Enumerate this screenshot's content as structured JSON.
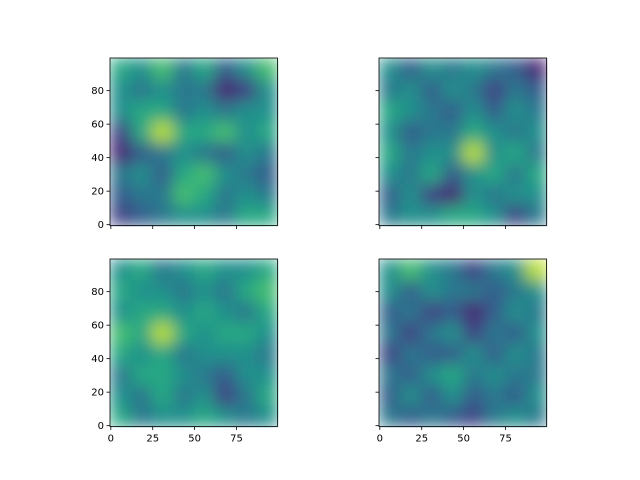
{
  "chart_data": [
    {
      "type": "heatmap",
      "colormap": "viridis",
      "xlim": [
        -0.5,
        99.5
      ],
      "ylim": [
        -0.5,
        99.5
      ],
      "xticks": [
        0,
        25,
        50,
        75
      ],
      "yticks": [
        0,
        20,
        40,
        60,
        80
      ],
      "show_xticklabels": false,
      "show_yticklabels": true,
      "z": [
        [
          0.2,
          0.3,
          0.4,
          0.5,
          0.5,
          0.4,
          0.6,
          0.6
        ],
        [
          0.3,
          0.4,
          0.4,
          0.7,
          0.6,
          0.4,
          0.5,
          0.4
        ],
        [
          0.4,
          0.5,
          0.3,
          0.6,
          0.7,
          0.5,
          0.4,
          0.3
        ],
        [
          0.1,
          0.3,
          0.4,
          0.5,
          0.4,
          0.3,
          0.5,
          0.4
        ],
        [
          0.2,
          0.6,
          0.9,
          0.6,
          0.6,
          0.7,
          0.5,
          0.6
        ],
        [
          0.5,
          0.6,
          0.6,
          0.4,
          0.5,
          0.4,
          0.5,
          0.5
        ],
        [
          0.5,
          0.4,
          0.5,
          0.4,
          0.4,
          0.1,
          0.2,
          0.5
        ],
        [
          0.6,
          0.5,
          0.7,
          0.4,
          0.6,
          0.3,
          0.5,
          0.7
        ]
      ]
    },
    {
      "type": "heatmap",
      "colormap": "viridis",
      "xlim": [
        -0.5,
        99.5
      ],
      "ylim": [
        -0.5,
        99.5
      ],
      "xticks": [
        0,
        25,
        50,
        75
      ],
      "yticks": [
        0,
        20,
        40,
        60,
        80
      ],
      "show_xticklabels": false,
      "show_yticklabels": false,
      "z": [
        [
          0.4,
          0.5,
          0.5,
          0.6,
          0.6,
          0.5,
          0.2,
          0.4
        ],
        [
          0.3,
          0.5,
          0.2,
          0.1,
          0.5,
          0.4,
          0.5,
          0.5
        ],
        [
          0.5,
          0.4,
          0.6,
          0.3,
          0.5,
          0.6,
          0.4,
          0.6
        ],
        [
          0.6,
          0.4,
          0.5,
          0.5,
          0.9,
          0.5,
          0.6,
          0.4
        ],
        [
          0.5,
          0.3,
          0.4,
          0.4,
          0.6,
          0.5,
          0.4,
          0.5
        ],
        [
          0.6,
          0.5,
          0.4,
          0.3,
          0.5,
          0.3,
          0.5,
          0.4
        ],
        [
          0.4,
          0.5,
          0.3,
          0.5,
          0.4,
          0.2,
          0.4,
          0.3
        ],
        [
          0.5,
          0.3,
          0.5,
          0.4,
          0.5,
          0.4,
          0.3,
          0.1
        ]
      ]
    },
    {
      "type": "heatmap",
      "colormap": "viridis",
      "xlim": [
        -0.5,
        99.5
      ],
      "ylim": [
        -0.5,
        99.5
      ],
      "xticks": [
        0,
        25,
        50,
        75
      ],
      "yticks": [
        0,
        20,
        40,
        60,
        80
      ],
      "show_xticklabels": true,
      "show_yticklabels": true,
      "z": [
        [
          0.6,
          0.4,
          0.5,
          0.5,
          0.6,
          0.5,
          0.4,
          0.5
        ],
        [
          0.5,
          0.4,
          0.6,
          0.4,
          0.5,
          0.2,
          0.4,
          0.6
        ],
        [
          0.4,
          0.6,
          0.6,
          0.5,
          0.4,
          0.3,
          0.5,
          0.5
        ],
        [
          0.6,
          0.5,
          0.6,
          0.4,
          0.5,
          0.5,
          0.5,
          0.4
        ],
        [
          0.7,
          0.6,
          0.9,
          0.6,
          0.5,
          0.6,
          0.6,
          0.5
        ],
        [
          0.5,
          0.6,
          0.6,
          0.5,
          0.6,
          0.5,
          0.4,
          0.6
        ],
        [
          0.6,
          0.5,
          0.5,
          0.4,
          0.5,
          0.4,
          0.6,
          0.7
        ],
        [
          0.5,
          0.6,
          0.4,
          0.5,
          0.6,
          0.5,
          0.5,
          0.6
        ]
      ]
    },
    {
      "type": "heatmap",
      "colormap": "viridis",
      "xlim": [
        -0.5,
        99.5
      ],
      "ylim": [
        -0.5,
        99.5
      ],
      "xticks": [
        0,
        25,
        50,
        75
      ],
      "yticks": [
        0,
        20,
        40,
        60,
        80
      ],
      "show_xticklabels": true,
      "show_yticklabels": false,
      "z": [
        [
          0.4,
          0.3,
          0.4,
          0.3,
          0.2,
          0.4,
          0.5,
          0.4
        ],
        [
          0.3,
          0.5,
          0.3,
          0.5,
          0.3,
          0.4,
          0.3,
          0.5
        ],
        [
          0.4,
          0.3,
          0.5,
          0.6,
          0.4,
          0.5,
          0.4,
          0.4
        ],
        [
          0.2,
          0.4,
          0.3,
          0.3,
          0.5,
          0.3,
          0.5,
          0.4
        ],
        [
          0.4,
          0.2,
          0.4,
          0.5,
          0.2,
          0.4,
          0.3,
          0.5
        ],
        [
          0.3,
          0.4,
          0.2,
          0.3,
          0.1,
          0.3,
          0.5,
          0.4
        ],
        [
          0.5,
          0.3,
          0.5,
          0.4,
          0.4,
          0.3,
          0.4,
          0.5
        ],
        [
          0.5,
          0.7,
          0.5,
          0.4,
          0.2,
          0.4,
          0.5,
          0.9
        ]
      ]
    }
  ]
}
